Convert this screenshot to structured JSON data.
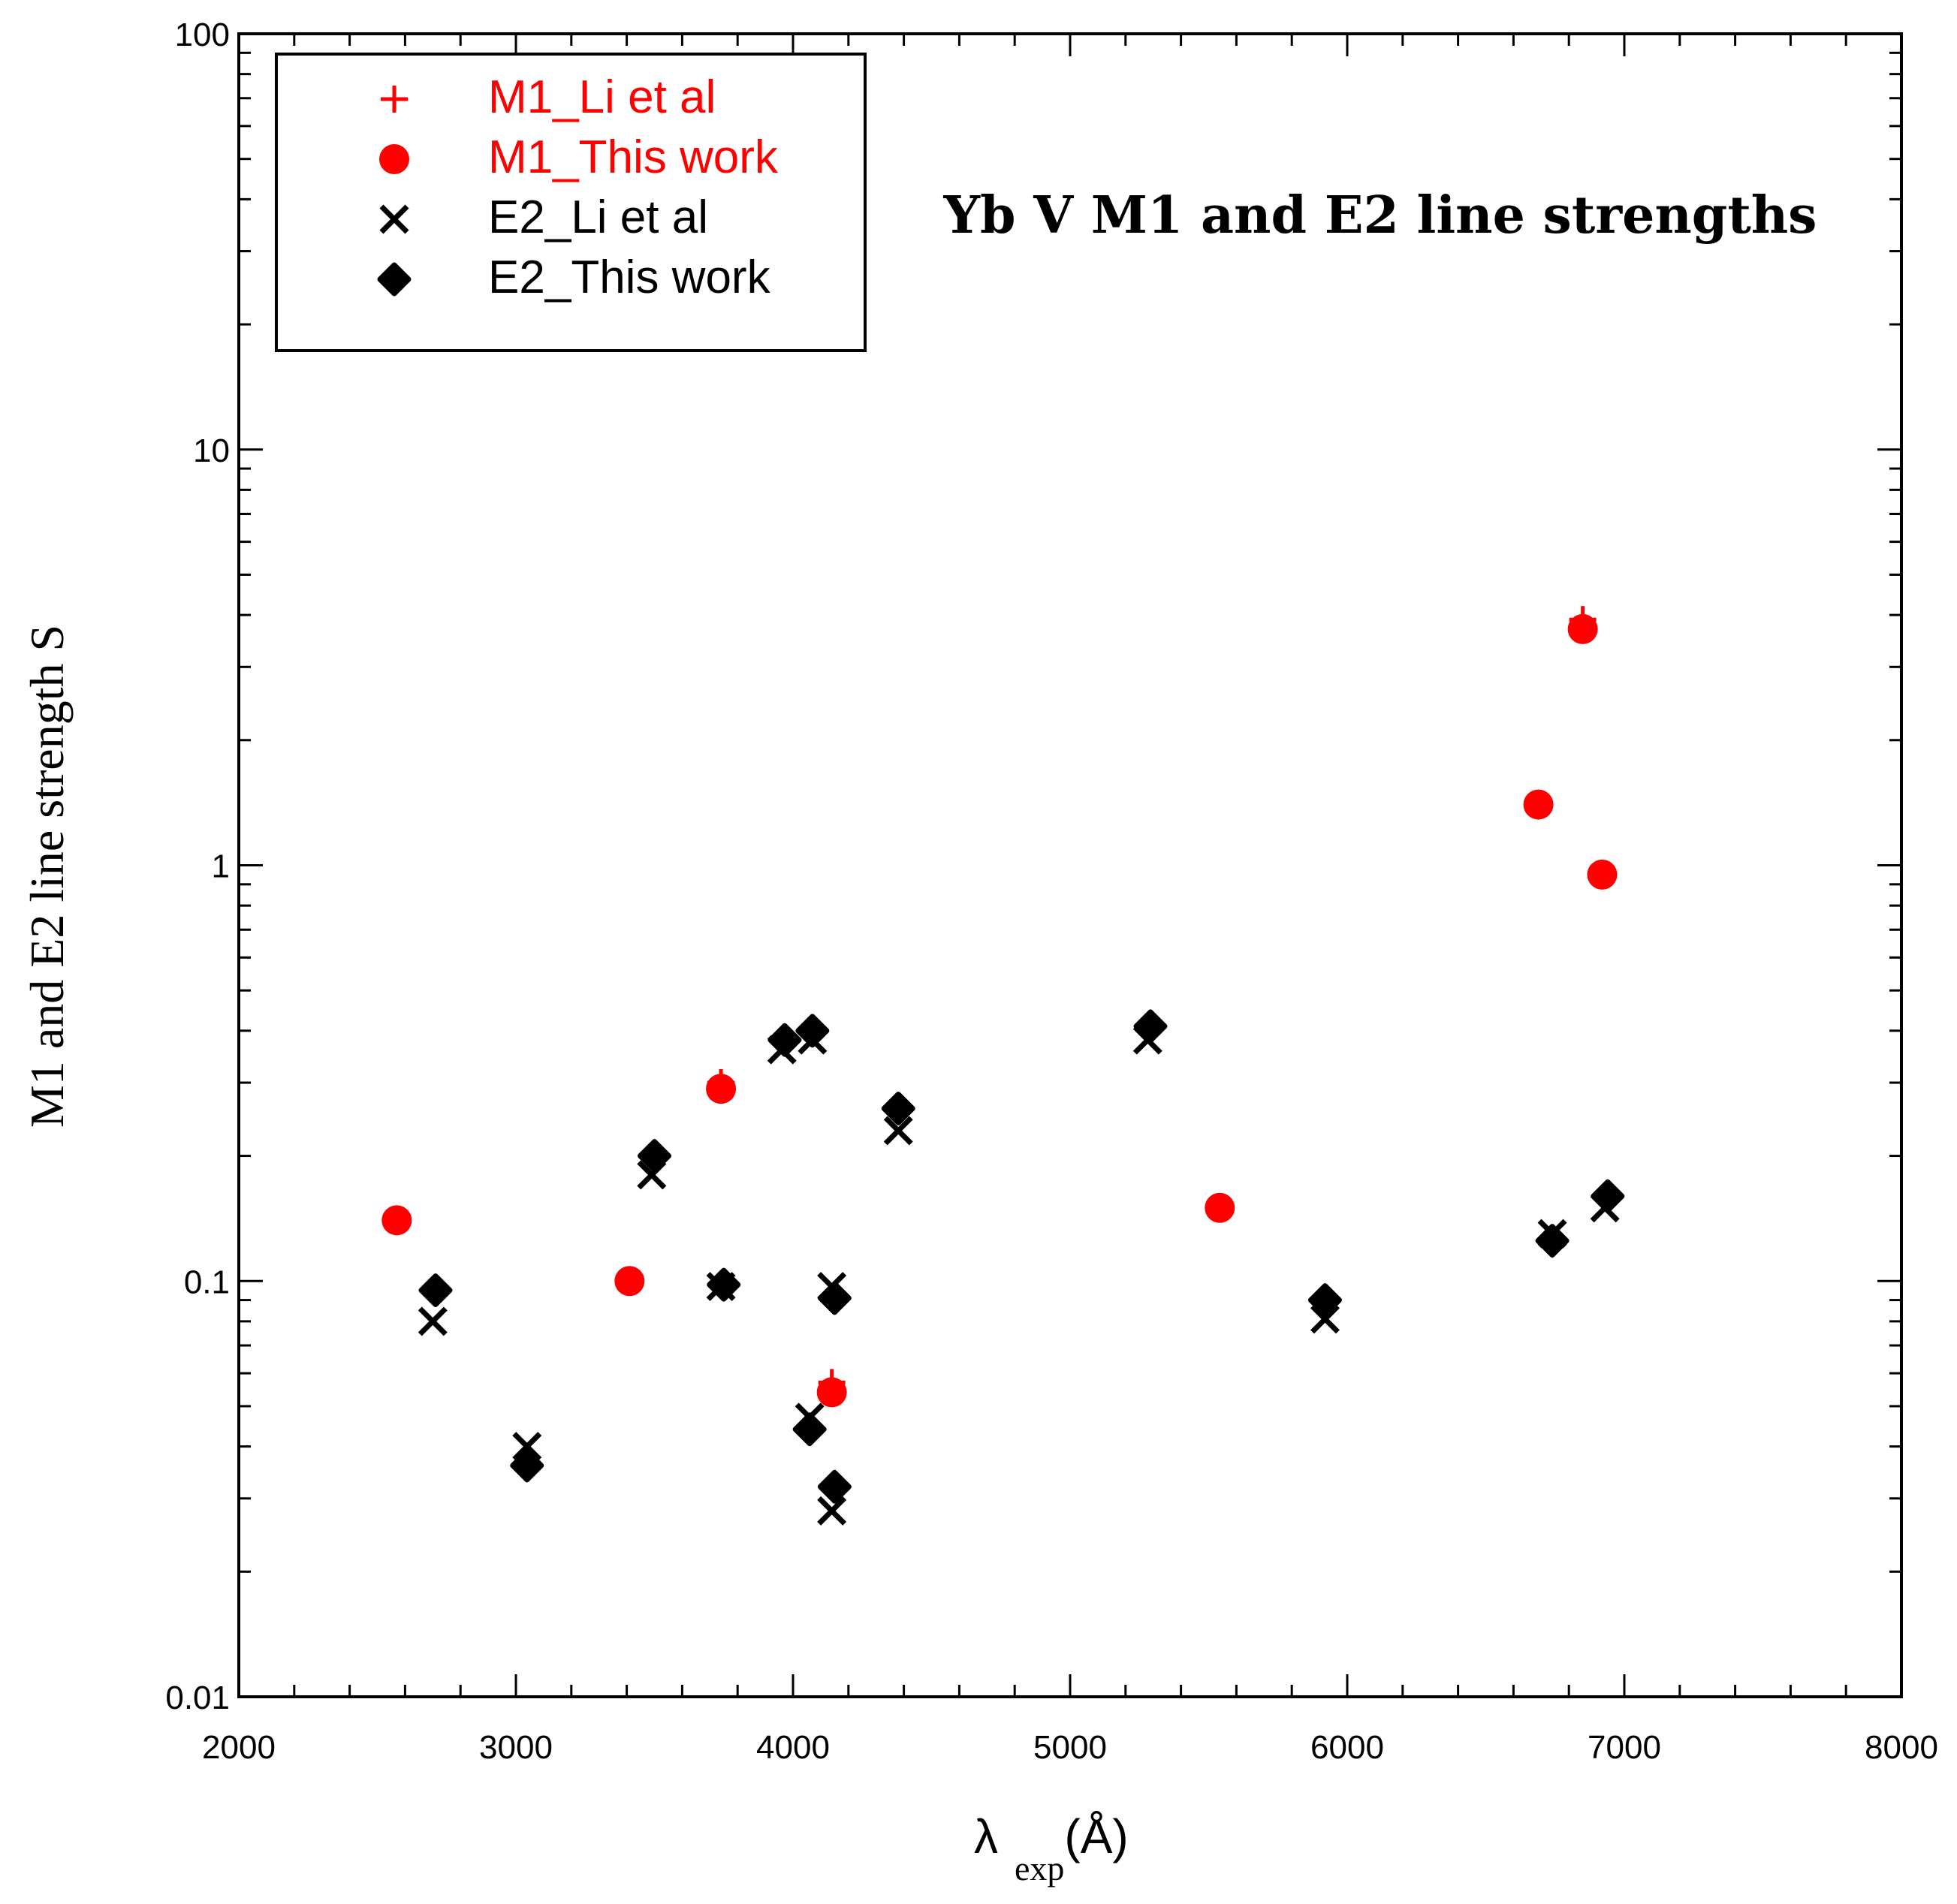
{
  "chart_data": {
    "type": "scatter",
    "title": "Yb V M1 and E2 line strengths",
    "xlabel": "λ",
    "xlabel_sub": "exp",
    "xlabel_unit": "(Å)",
    "ylabel": "M1 and E2 line strength S",
    "xlim": [
      2000,
      8000
    ],
    "ylim": [
      0.01,
      100
    ],
    "yscale": "log",
    "x_ticks": [
      "2000",
      "3000",
      "4000",
      "5000",
      "6000",
      "7000",
      "8000"
    ],
    "y_ticks": [
      "0.01",
      "0.1",
      "1",
      "10",
      "100"
    ],
    "legend_position": "top-left",
    "series": [
      {
        "name": "M1_Li et al",
        "marker": "plus",
        "color": "#ff0000",
        "points": [
          [
            3740,
            0.3
          ],
          [
            4140,
            0.057
          ],
          [
            6850,
            3.9
          ]
        ]
      },
      {
        "name": "M1_This work",
        "marker": "circle",
        "color": "#ff0000",
        "points": [
          [
            2570,
            0.14
          ],
          [
            3410,
            0.1
          ],
          [
            3740,
            0.29
          ],
          [
            4140,
            0.054
          ],
          [
            5540,
            0.15
          ],
          [
            6690,
            1.4
          ],
          [
            6850,
            3.7
          ],
          [
            6920,
            0.95
          ]
        ]
      },
      {
        "name": "E2_Li et al",
        "marker": "x",
        "color": "#000000",
        "points": [
          [
            2700,
            0.08
          ],
          [
            3040,
            0.04
          ],
          [
            3490,
            0.18
          ],
          [
            3740,
            0.097
          ],
          [
            3960,
            0.36
          ],
          [
            4060,
            0.047
          ],
          [
            4070,
            0.38
          ],
          [
            4140,
            0.097
          ],
          [
            4140,
            0.028
          ],
          [
            4380,
            0.23
          ],
          [
            5280,
            0.38
          ],
          [
            5920,
            0.081
          ],
          [
            6740,
            0.13
          ],
          [
            6930,
            0.15
          ]
        ]
      },
      {
        "name": "E2_This work",
        "marker": "diamond",
        "color": "#000000",
        "points": [
          [
            2710,
            0.095
          ],
          [
            3040,
            0.036
          ],
          [
            3500,
            0.2
          ],
          [
            3750,
            0.098
          ],
          [
            3970,
            0.38
          ],
          [
            4060,
            0.044
          ],
          [
            4070,
            0.4
          ],
          [
            4150,
            0.091
          ],
          [
            4150,
            0.032
          ],
          [
            4380,
            0.26
          ],
          [
            5290,
            0.41
          ],
          [
            5920,
            0.09
          ],
          [
            6740,
            0.125
          ],
          [
            6940,
            0.16
          ]
        ]
      }
    ]
  }
}
